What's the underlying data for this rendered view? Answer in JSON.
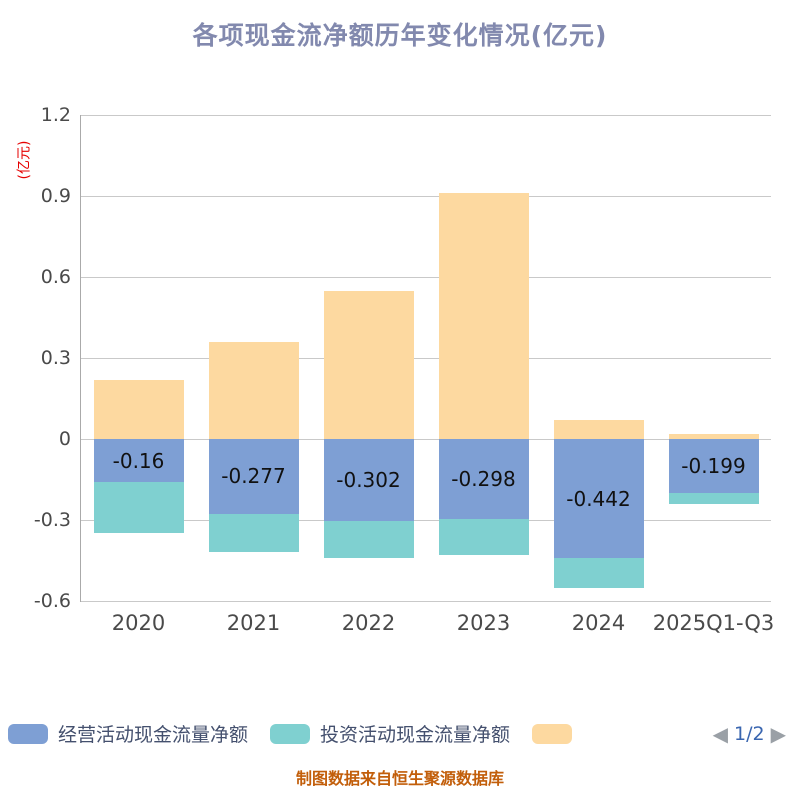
{
  "title": "各项现金流净额历年变化情况(亿元)",
  "y_unit": "(亿元)",
  "source_note": "制图数据来自恒生聚源数据库",
  "legend": {
    "items": [
      {
        "label": "经营活动现金流量净额",
        "color": "#7e9fd4"
      },
      {
        "label": "投资活动现金流量净额",
        "color": "#7fd0d0"
      },
      {
        "label": "",
        "color": "#fdd9a0"
      }
    ],
    "pagination": {
      "prev": "◀",
      "text": "1/2",
      "next": "▶"
    }
  },
  "chart_data": {
    "type": "bar",
    "stacked": true,
    "categories": [
      "2020",
      "2021",
      "2022",
      "2023",
      "2024",
      "2025Q1-Q3"
    ],
    "series": [
      {
        "name": "经营活动现金流量净额",
        "color": "#7e9fd4",
        "values": [
          -0.16,
          -0.277,
          -0.302,
          -0.298,
          -0.442,
          -0.199
        ],
        "labels": [
          "-0.16",
          "-0.277",
          "-0.302",
          "-0.298",
          "-0.442",
          "-0.199"
        ]
      },
      {
        "name": "投资活动现金流量净额",
        "color": "#7fd0d0",
        "values": [
          -0.19,
          -0.14,
          -0.14,
          -0.13,
          -0.11,
          -0.04
        ]
      },
      {
        "name": "",
        "color": "#fdd9a0",
        "values": [
          0.22,
          0.36,
          0.55,
          0.91,
          0.07,
          0.02
        ]
      }
    ],
    "ylim": [
      -0.6,
      1.2
    ],
    "yticks": [
      1.2,
      0.9,
      0.6,
      0.3,
      0,
      -0.3,
      -0.6
    ],
    "grid": true,
    "legend_position": "bottom"
  }
}
